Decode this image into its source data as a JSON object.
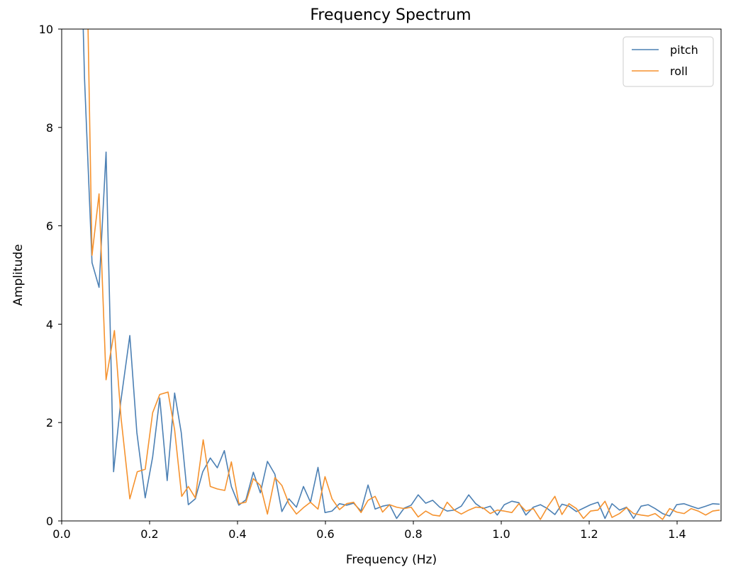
{
  "chart_data": {
    "type": "line",
    "title": "Frequency Spectrum",
    "xlabel": "Frequency (Hz)",
    "ylabel": "Amplitude",
    "xlim": [
      0,
      1.5
    ],
    "ylim": [
      0,
      10
    ],
    "xticks": [
      "0.0",
      "0.2",
      "0.4",
      "0.6",
      "0.8",
      "1.0",
      "1.2",
      "1.4"
    ],
    "yticks": [
      "0",
      "2",
      "4",
      "6",
      "8",
      "10"
    ],
    "grid": false,
    "legend_position": "top-right",
    "series": [
      {
        "name": "pitch",
        "color": "#4c80b4",
        "x": [
          0.049,
          0.052,
          0.069,
          0.085,
          0.101,
          0.118,
          0.134,
          0.155,
          0.171,
          0.19,
          0.207,
          0.223,
          0.24,
          0.257,
          0.272,
          0.288,
          0.304,
          0.321,
          0.338,
          0.354,
          0.37,
          0.386,
          0.403,
          0.419,
          0.436,
          0.452,
          0.468,
          0.485,
          0.501,
          0.517,
          0.534,
          0.55,
          0.566,
          0.583,
          0.599,
          0.615,
          0.632,
          0.648,
          0.664,
          0.681,
          0.697,
          0.713,
          0.73,
          0.746,
          0.762,
          0.779,
          0.795,
          0.811,
          0.828,
          0.844,
          0.86,
          0.877,
          0.893,
          0.909,
          0.926,
          0.942,
          0.958,
          0.975,
          0.991,
          1.007,
          1.024,
          1.04,
          1.056,
          1.073,
          1.089,
          1.105,
          1.122,
          1.138,
          1.154,
          1.171,
          1.187,
          1.203,
          1.22,
          1.236,
          1.252,
          1.269,
          1.285,
          1.301,
          1.318,
          1.334,
          1.35,
          1.367,
          1.383,
          1.399,
          1.416,
          1.432,
          1.448,
          1.465,
          1.481,
          1.497
        ],
        "y": [
          10.0,
          9.0,
          5.25,
          4.75,
          7.5,
          1.0,
          2.4,
          3.77,
          1.8,
          0.47,
          1.3,
          2.5,
          0.82,
          2.6,
          1.8,
          0.33,
          0.45,
          1.0,
          1.28,
          1.08,
          1.43,
          0.7,
          0.32,
          0.43,
          0.99,
          0.57,
          1.21,
          0.95,
          0.19,
          0.45,
          0.28,
          0.7,
          0.38,
          1.09,
          0.17,
          0.2,
          0.35,
          0.32,
          0.36,
          0.2,
          0.73,
          0.24,
          0.3,
          0.33,
          0.05,
          0.26,
          0.32,
          0.53,
          0.36,
          0.42,
          0.28,
          0.2,
          0.22,
          0.3,
          0.53,
          0.35,
          0.25,
          0.3,
          0.12,
          0.33,
          0.4,
          0.37,
          0.12,
          0.28,
          0.33,
          0.25,
          0.13,
          0.34,
          0.3,
          0.19,
          0.26,
          0.33,
          0.38,
          0.05,
          0.35,
          0.22,
          0.28,
          0.05,
          0.3,
          0.33,
          0.25,
          0.15,
          0.1,
          0.33,
          0.35,
          0.3,
          0.25,
          0.3,
          0.35,
          0.34
        ]
      },
      {
        "name": "roll",
        "color": "#f5922e",
        "x": [
          0.06,
          0.069,
          0.085,
          0.101,
          0.12,
          0.135,
          0.155,
          0.172,
          0.19,
          0.207,
          0.223,
          0.242,
          0.257,
          0.273,
          0.288,
          0.304,
          0.322,
          0.338,
          0.354,
          0.371,
          0.386,
          0.403,
          0.419,
          0.436,
          0.452,
          0.468,
          0.485,
          0.501,
          0.517,
          0.534,
          0.55,
          0.566,
          0.583,
          0.599,
          0.615,
          0.632,
          0.648,
          0.664,
          0.681,
          0.697,
          0.713,
          0.73,
          0.746,
          0.762,
          0.779,
          0.795,
          0.811,
          0.828,
          0.844,
          0.86,
          0.877,
          0.893,
          0.909,
          0.926,
          0.942,
          0.958,
          0.975,
          0.991,
          1.007,
          1.024,
          1.04,
          1.056,
          1.073,
          1.089,
          1.105,
          1.122,
          1.138,
          1.154,
          1.171,
          1.187,
          1.203,
          1.22,
          1.236,
          1.252,
          1.269,
          1.285,
          1.301,
          1.318,
          1.334,
          1.35,
          1.367,
          1.383,
          1.399,
          1.416,
          1.432,
          1.448,
          1.465,
          1.481,
          1.497
        ],
        "y": [
          10.0,
          5.4,
          6.65,
          2.87,
          3.87,
          2.1,
          0.45,
          1.0,
          1.05,
          2.2,
          2.57,
          2.62,
          1.85,
          0.5,
          0.7,
          0.47,
          1.65,
          0.7,
          0.65,
          0.62,
          1.2,
          0.35,
          0.38,
          0.86,
          0.72,
          0.14,
          0.88,
          0.72,
          0.35,
          0.14,
          0.27,
          0.38,
          0.24,
          0.9,
          0.45,
          0.23,
          0.35,
          0.38,
          0.17,
          0.42,
          0.5,
          0.18,
          0.33,
          0.28,
          0.25,
          0.28,
          0.08,
          0.2,
          0.12,
          0.1,
          0.38,
          0.22,
          0.14,
          0.22,
          0.28,
          0.27,
          0.15,
          0.22,
          0.2,
          0.17,
          0.35,
          0.2,
          0.25,
          0.03,
          0.28,
          0.5,
          0.13,
          0.35,
          0.25,
          0.05,
          0.2,
          0.22,
          0.4,
          0.07,
          0.15,
          0.27,
          0.15,
          0.12,
          0.1,
          0.15,
          0.03,
          0.25,
          0.18,
          0.15,
          0.25,
          0.2,
          0.12,
          0.2,
          0.22
        ]
      }
    ]
  }
}
